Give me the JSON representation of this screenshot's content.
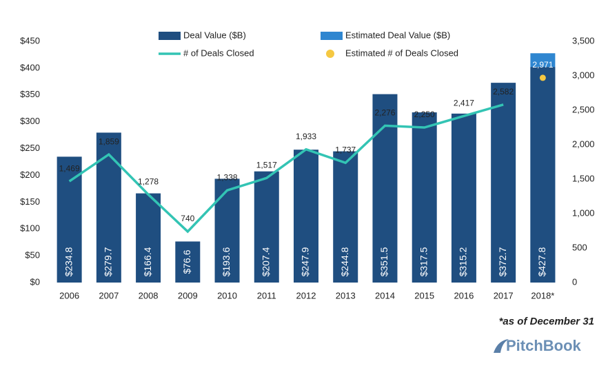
{
  "chart_data": {
    "type": "bar-line",
    "categories": [
      "2006",
      "2007",
      "2008",
      "2009",
      "2010",
      "2011",
      "2012",
      "2013",
      "2014",
      "2015",
      "2016",
      "2017",
      "2018*"
    ],
    "series": [
      {
        "name": "Deal Value ($B)",
        "type": "bar",
        "color": "#1f4e80",
        "values": [
          234.8,
          279.7,
          166.4,
          76.6,
          193.6,
          207.4,
          247.9,
          244.8,
          351.5,
          317.5,
          315.2,
          372.7,
          402
        ],
        "value_labels": [
          "$234.8",
          "$279.7",
          "$166.4",
          "$76.6",
          "$193.6",
          "$207.4",
          "$247.9",
          "$244.8",
          "$351.5",
          "$317.5",
          "$315.2",
          "$372.7",
          null
        ]
      },
      {
        "name": "Estimated Deal Value ($B)",
        "type": "bar",
        "color": "#2f86d0",
        "values": [
          null,
          null,
          null,
          null,
          null,
          null,
          null,
          null,
          null,
          null,
          null,
          null,
          427.8
        ],
        "value_labels": [
          null,
          null,
          null,
          null,
          null,
          null,
          null,
          null,
          null,
          null,
          null,
          null,
          "$427.8"
        ]
      },
      {
        "name": "# of Deals Closed",
        "type": "line",
        "axis": "y2",
        "color": "#33c4b4",
        "values": [
          1469,
          1859,
          1278,
          740,
          1338,
          1517,
          1933,
          1737,
          2276,
          2250,
          2417,
          2582,
          null
        ],
        "value_labels": [
          "1,469",
          "1,859",
          "1,278",
          "740",
          "1,338",
          "1,517",
          "1,933",
          "1,737",
          "2,276",
          "2,250",
          "2,417",
          "2,582",
          null
        ]
      },
      {
        "name": "Estimated # of Deals Closed",
        "type": "dot",
        "axis": "y2",
        "color": "#f5c842",
        "values": [
          null,
          null,
          null,
          null,
          null,
          null,
          null,
          null,
          null,
          null,
          null,
          null,
          2971
        ],
        "value_labels": [
          null,
          null,
          null,
          null,
          null,
          null,
          null,
          null,
          null,
          null,
          null,
          null,
          "2,971"
        ]
      }
    ],
    "ylim": [
      0,
      450
    ],
    "yticks": [
      {
        "value": 0,
        "label": "$0"
      },
      {
        "value": 50,
        "label": "$50"
      },
      {
        "value": 100,
        "label": "$100"
      },
      {
        "value": 150,
        "label": "$150"
      },
      {
        "value": 200,
        "label": "$200"
      },
      {
        "value": 250,
        "label": "$250"
      },
      {
        "value": 300,
        "label": "$300"
      },
      {
        "value": 350,
        "label": "$350"
      },
      {
        "value": 400,
        "label": "$400"
      },
      {
        "value": 450,
        "label": "$450"
      }
    ],
    "y2lim": [
      0,
      3500
    ],
    "y2ticks": [
      0,
      500,
      {
        "value": 1000,
        "label": "1,000"
      },
      {
        "value": 1500,
        "label": "1,500"
      },
      {
        "value": 2000,
        "label": "2,000"
      },
      {
        "value": 2500,
        "label": "2,500"
      },
      {
        "value": 3000,
        "label": "3,000"
      },
      {
        "value": 3500,
        "label": "3,500"
      }
    ],
    "legend": "top",
    "footnote": "*as of December 31",
    "source": "PitchBook"
  }
}
